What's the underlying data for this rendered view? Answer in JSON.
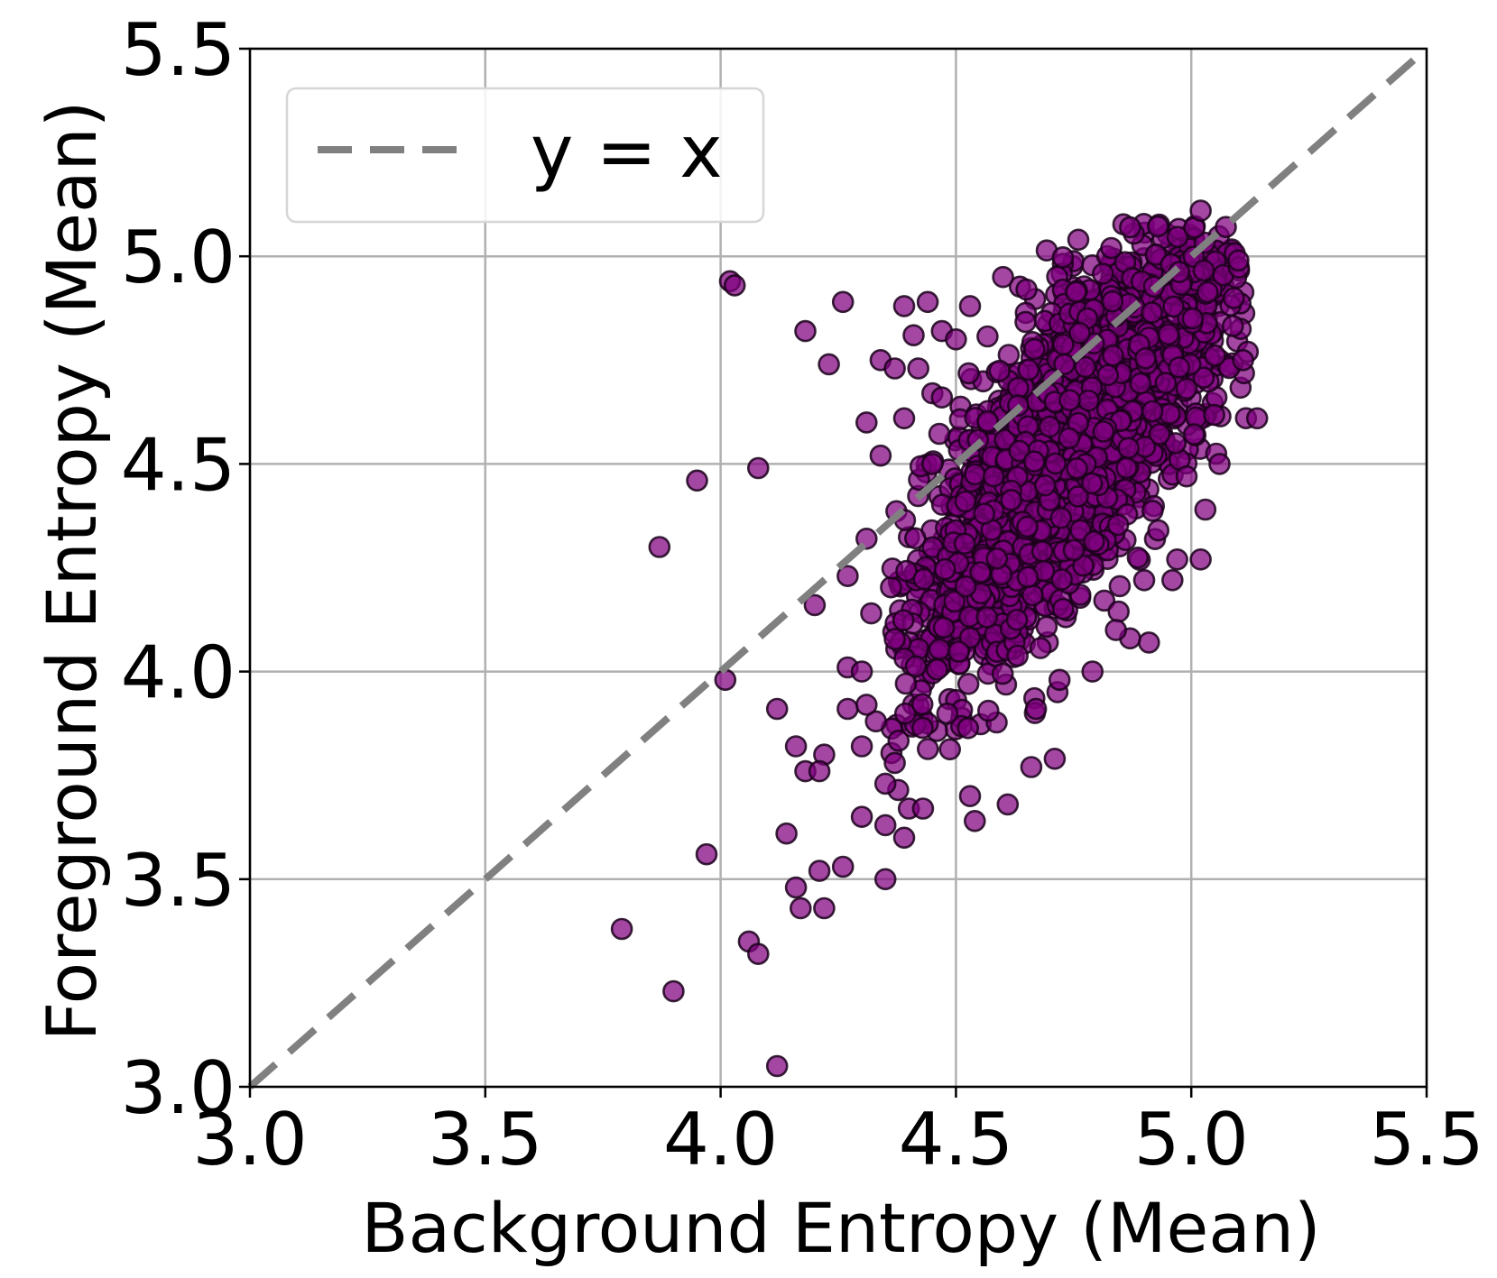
{
  "chart_data": {
    "type": "scatter",
    "title": "",
    "xlabel": "Background Entropy (Mean)",
    "ylabel": "Foreground Entropy (Mean)",
    "xlim": [
      3.0,
      5.5
    ],
    "ylim": [
      3.0,
      5.5
    ],
    "xticks": [
      "3.0",
      "3.5",
      "4.0",
      "4.5",
      "5.0",
      "5.5"
    ],
    "yticks": [
      "3.0",
      "3.5",
      "4.0",
      "4.5",
      "5.0",
      "5.5"
    ],
    "grid": true,
    "legend": {
      "position": "top-left",
      "entries": [
        "y = x"
      ]
    },
    "colors": {
      "points": "#800080",
      "point_edge": "#1a001a",
      "reference_line": "#808080",
      "grid": "#b0b0b0"
    },
    "reference_line": {
      "label": "y = x",
      "style": "dashed",
      "from": [
        3.0,
        3.0
      ],
      "to": [
        5.5,
        5.5
      ]
    },
    "outliers": [
      [
        4.02,
        4.94
      ],
      [
        4.03,
        4.93
      ],
      [
        3.95,
        4.46
      ],
      [
        3.87,
        4.3
      ],
      [
        4.08,
        4.49
      ],
      [
        4.01,
        3.98
      ],
      [
        4.12,
        3.91
      ],
      [
        4.16,
        3.82
      ],
      [
        4.18,
        3.76
      ],
      [
        4.22,
        3.8
      ],
      [
        4.21,
        3.76
      ],
      [
        4.14,
        3.61
      ],
      [
        3.97,
        3.56
      ],
      [
        4.16,
        3.48
      ],
      [
        4.17,
        3.43
      ],
      [
        4.22,
        3.43
      ],
      [
        4.21,
        3.52
      ],
      [
        4.26,
        3.53
      ],
      [
        3.79,
        3.38
      ],
      [
        3.9,
        3.23
      ],
      [
        4.06,
        3.35
      ],
      [
        4.08,
        3.32
      ],
      [
        4.12,
        3.05
      ],
      [
        4.35,
        3.5
      ],
      [
        4.3,
        3.65
      ],
      [
        4.35,
        3.63
      ],
      [
        4.4,
        3.67
      ],
      [
        4.43,
        3.67
      ],
      [
        4.39,
        3.6
      ],
      [
        4.35,
        3.73
      ],
      [
        4.37,
        3.78
      ],
      [
        4.3,
        3.82
      ],
      [
        4.27,
        3.91
      ],
      [
        4.33,
        3.88
      ],
      [
        4.31,
        3.92
      ],
      [
        4.27,
        4.01
      ],
      [
        4.3,
        4.0
      ],
      [
        4.18,
        4.82
      ],
      [
        4.23,
        4.74
      ],
      [
        4.26,
        4.89
      ],
      [
        4.34,
        4.75
      ],
      [
        4.39,
        4.88
      ],
      [
        4.44,
        4.89
      ],
      [
        4.37,
        4.73
      ],
      [
        4.42,
        4.73
      ],
      [
        4.31,
        4.6
      ],
      [
        4.39,
        4.61
      ],
      [
        4.34,
        4.52
      ],
      [
        4.45,
        4.5
      ],
      [
        4.2,
        4.16
      ],
      [
        4.31,
        4.32
      ],
      [
        4.27,
        4.23
      ],
      [
        4.32,
        4.14
      ],
      [
        4.54,
        3.64
      ],
      [
        4.53,
        3.7
      ],
      [
        4.61,
        3.68
      ],
      [
        4.66,
        3.77
      ],
      [
        4.71,
        3.79
      ],
      [
        4.67,
        3.91
      ],
      [
        4.72,
        3.98
      ],
      [
        4.79,
        4.0
      ],
      [
        4.91,
        4.07
      ],
      [
        4.87,
        4.08
      ],
      [
        4.84,
        4.1
      ],
      [
        4.96,
        4.22
      ],
      [
        4.9,
        4.22
      ],
      [
        5.02,
        4.27
      ],
      [
        4.97,
        4.27
      ],
      [
        5.03,
        4.39
      ],
      [
        4.93,
        4.34
      ],
      [
        4.99,
        4.47
      ],
      [
        5.06,
        4.5
      ],
      [
        5.14,
        4.61
      ],
      [
        5.12,
        4.77
      ],
      [
        5.11,
        4.75
      ],
      [
        5.1,
        4.99
      ],
      [
        5.02,
        5.11
      ],
      [
        4.87,
        5.07
      ],
      [
        4.76,
        5.04
      ],
      [
        4.83,
        5.02
      ],
      [
        4.6,
        4.95
      ],
      [
        4.53,
        4.88
      ],
      [
        4.65,
        4.92
      ],
      [
        4.47,
        4.82
      ],
      [
        4.5,
        4.8
      ],
      [
        4.45,
        4.67
      ],
      [
        4.47,
        4.66
      ],
      [
        4.41,
        4.81
      ],
      [
        4.58,
        4.47
      ],
      [
        4.56,
        4.38
      ]
    ],
    "cluster": {
      "approx_points": 2600,
      "center": [
        4.75,
        4.55
      ],
      "bounds": {
        "x": [
          4.36,
          5.12
        ],
        "y": [
          3.62,
          5.08
        ]
      },
      "trend": "positive correlation; cloud centred along a band with slope ~1.2"
    }
  }
}
